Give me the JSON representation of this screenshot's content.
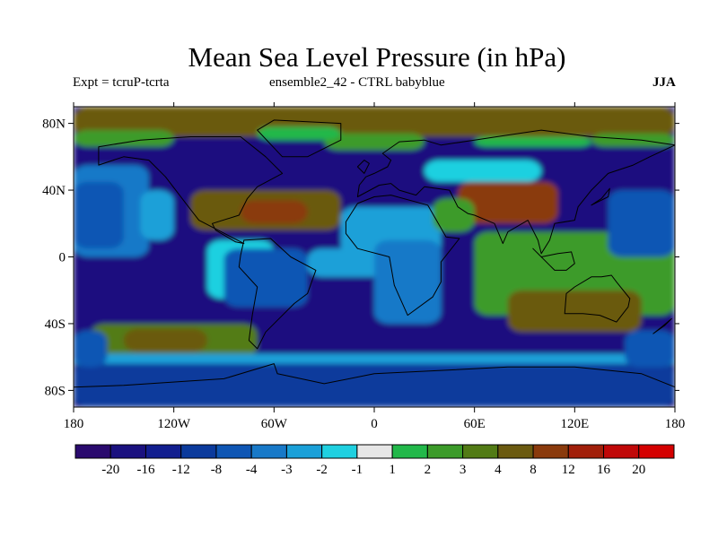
{
  "chart_data": {
    "type": "heatmap",
    "title": "Mean Sea Level Pressure (in hPa)",
    "subtitle_left": "Expt = tcruP-tcrta",
    "subtitle_center": "ensemble2_42 - CTRL babyblue",
    "subtitle_right": "JJA",
    "x_ticks": [
      {
        "value": -180,
        "label": "180"
      },
      {
        "value": -120,
        "label": "120W"
      },
      {
        "value": -60,
        "label": "60W"
      },
      {
        "value": 0,
        "label": "0"
      },
      {
        "value": 60,
        "label": "60E"
      },
      {
        "value": 120,
        "label": "120E"
      },
      {
        "value": 180,
        "label": "180"
      }
    ],
    "y_ticks": [
      {
        "value": 80,
        "label": "80N"
      },
      {
        "value": 40,
        "label": "40N"
      },
      {
        "value": 0,
        "label": "0"
      },
      {
        "value": -40,
        "label": "40S"
      },
      {
        "value": -80,
        "label": "80S"
      }
    ],
    "xlim": [
      -180,
      180
    ],
    "ylim": [
      -90,
      90
    ],
    "colorbar": {
      "labels": [
        "-20",
        "-16",
        "-12",
        "-8",
        "-4",
        "-3",
        "-2",
        "-1",
        "1",
        "2",
        "3",
        "4",
        "8",
        "12",
        "16",
        "20"
      ],
      "colors": [
        "#2a0a6e",
        "#1a117f",
        "#121e8f",
        "#0b3a9c",
        "#0f56b4",
        "#1879c8",
        "#1aa0d8",
        "#1fd0e0",
        "#e6e6e6",
        "#22b84a",
        "#3c9b2a",
        "#527b15",
        "#6b5a10",
        "#8a3a0c",
        "#a11f0a",
        "#c00808",
        "#d40000"
      ]
    },
    "field_regions": [
      {
        "level": 1,
        "lon": [
          -180,
          180
        ],
        "lat": [
          -90,
          90
        ]
      },
      {
        "level": 12,
        "lon": [
          -180,
          180
        ],
        "lat": [
          72,
          90
        ]
      },
      {
        "level": 10,
        "lon": [
          -180,
          -120
        ],
        "lat": [
          66,
          76
        ]
      },
      {
        "level": 10,
        "lon": [
          -30,
          30
        ],
        "lat": [
          64,
          74
        ]
      },
      {
        "level": 10,
        "lon": [
          130,
          180
        ],
        "lat": [
          66,
          74
        ]
      },
      {
        "level": 9,
        "lon": [
          -70,
          -20
        ],
        "lat": [
          70,
          78
        ]
      },
      {
        "level": 9,
        "lon": [
          60,
          130
        ],
        "lat": [
          66,
          72
        ]
      },
      {
        "level": 5,
        "lon": [
          -180,
          -135
        ],
        "lat": [
          0,
          55
        ]
      },
      {
        "level": 4,
        "lon": [
          -180,
          -150
        ],
        "lat": [
          5,
          45
        ]
      },
      {
        "level": 6,
        "lon": [
          -140,
          -120
        ],
        "lat": [
          10,
          40
        ]
      },
      {
        "level": 12,
        "lon": [
          -110,
          -20
        ],
        "lat": [
          16,
          40
        ]
      },
      {
        "level": 13,
        "lon": [
          -80,
          -40
        ],
        "lat": [
          20,
          34
        ]
      },
      {
        "level": 7,
        "lon": [
          -100,
          -60
        ],
        "lat": [
          -25,
          10
        ]
      },
      {
        "level": 4,
        "lon": [
          -90,
          -40
        ],
        "lat": [
          -30,
          5
        ]
      },
      {
        "level": 6,
        "lon": [
          -40,
          10
        ],
        "lat": [
          -12,
          5
        ]
      },
      {
        "level": 6,
        "lon": [
          -20,
          40
        ],
        "lat": [
          0,
          30
        ]
      },
      {
        "level": 5,
        "lon": [
          0,
          40
        ],
        "lat": [
          -40,
          10
        ]
      },
      {
        "level": 7,
        "lon": [
          30,
          100
        ],
        "lat": [
          45,
          58
        ]
      },
      {
        "level": 13,
        "lon": [
          50,
          110
        ],
        "lat": [
          20,
          45
        ]
      },
      {
        "level": 10,
        "lon": [
          35,
          60
        ],
        "lat": [
          15,
          35
        ]
      },
      {
        "level": 10,
        "lon": [
          60,
          180
        ],
        "lat": [
          -35,
          15
        ]
      },
      {
        "level": 12,
        "lon": [
          80,
          160
        ],
        "lat": [
          -45,
          -20
        ]
      },
      {
        "level": 4,
        "lon": [
          140,
          180
        ],
        "lat": [
          0,
          40
        ]
      },
      {
        "level": 11,
        "lon": [
          -170,
          -70
        ],
        "lat": [
          -60,
          -40
        ]
      },
      {
        "level": 12,
        "lon": [
          -150,
          -100
        ],
        "lat": [
          -57,
          -43
        ]
      },
      {
        "level": 6,
        "lon": [
          -180,
          180
        ],
        "lat": [
          -66,
          -58
        ]
      },
      {
        "level": 3,
        "lon": [
          -180,
          180
        ],
        "lat": [
          -90,
          -64
        ]
      },
      {
        "level": 4,
        "lon": [
          -180,
          -160
        ],
        "lat": [
          -66,
          -44
        ]
      },
      {
        "level": 4,
        "lon": [
          150,
          180
        ],
        "lat": [
          -66,
          -44
        ]
      }
    ]
  }
}
